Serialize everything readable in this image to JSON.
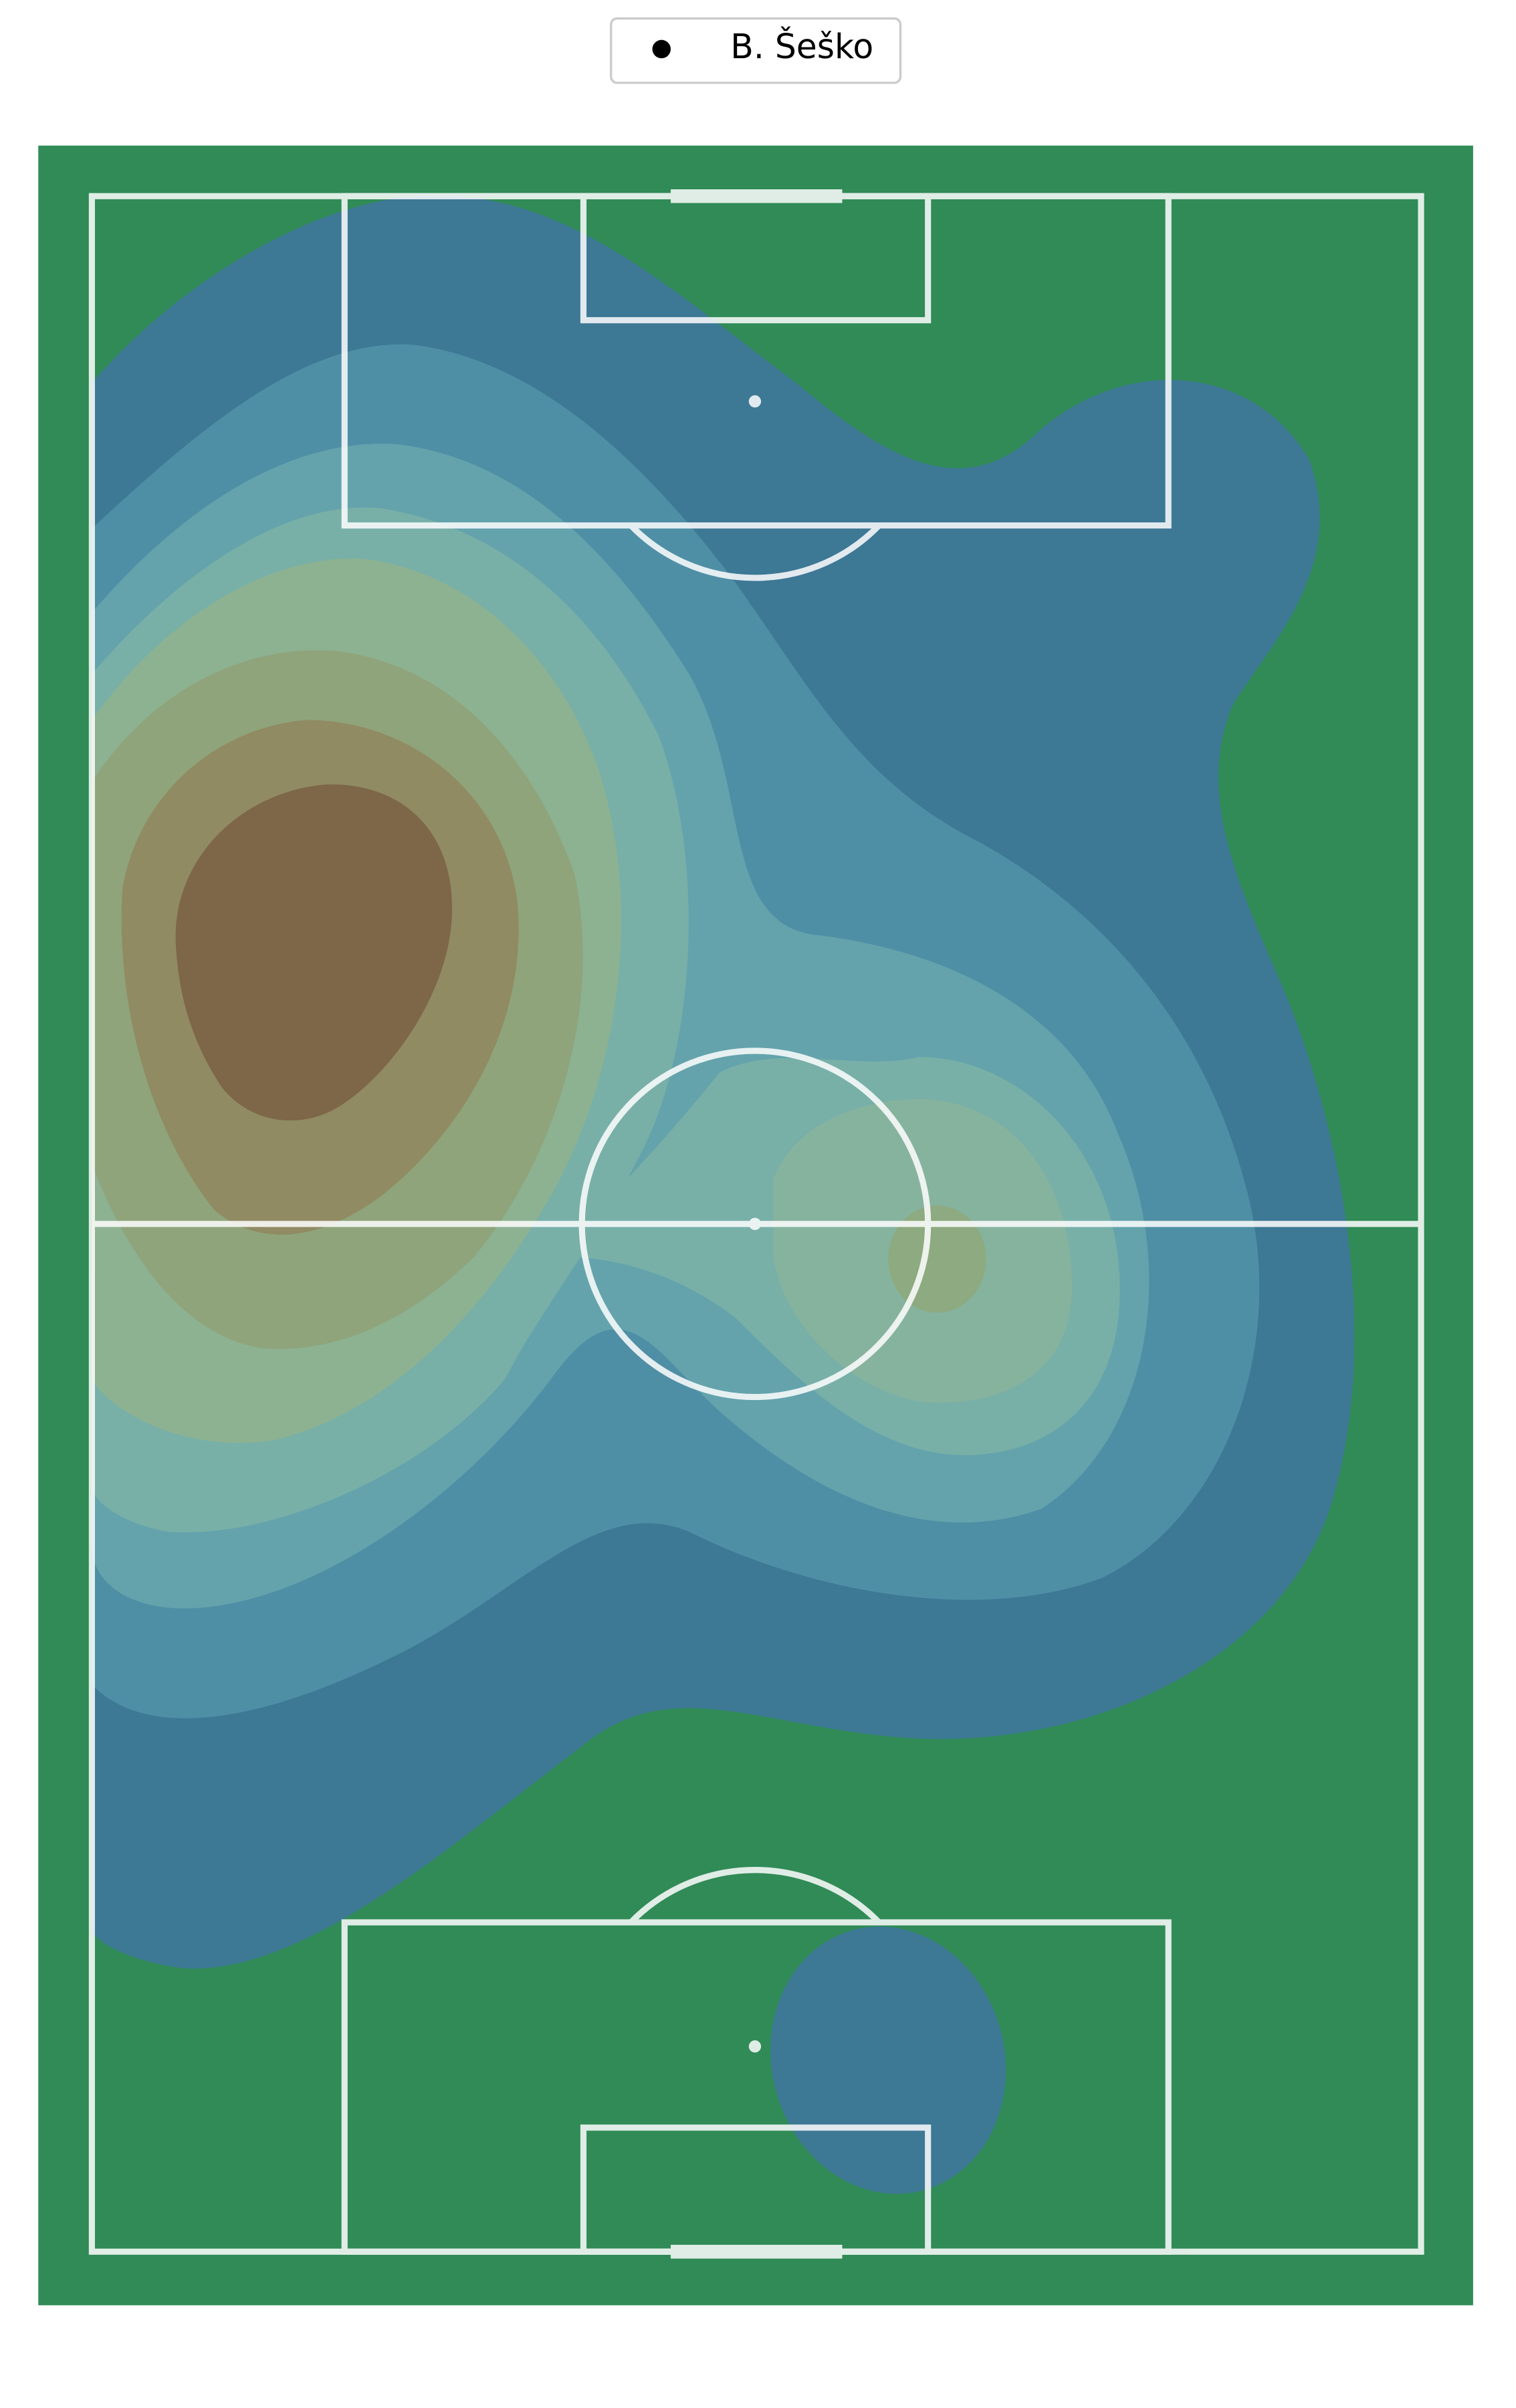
{
  "chart_data": {
    "type": "kde-pitch",
    "legend": {
      "label": "B. Šeško",
      "marker_color": "#000000"
    }
  }
}
